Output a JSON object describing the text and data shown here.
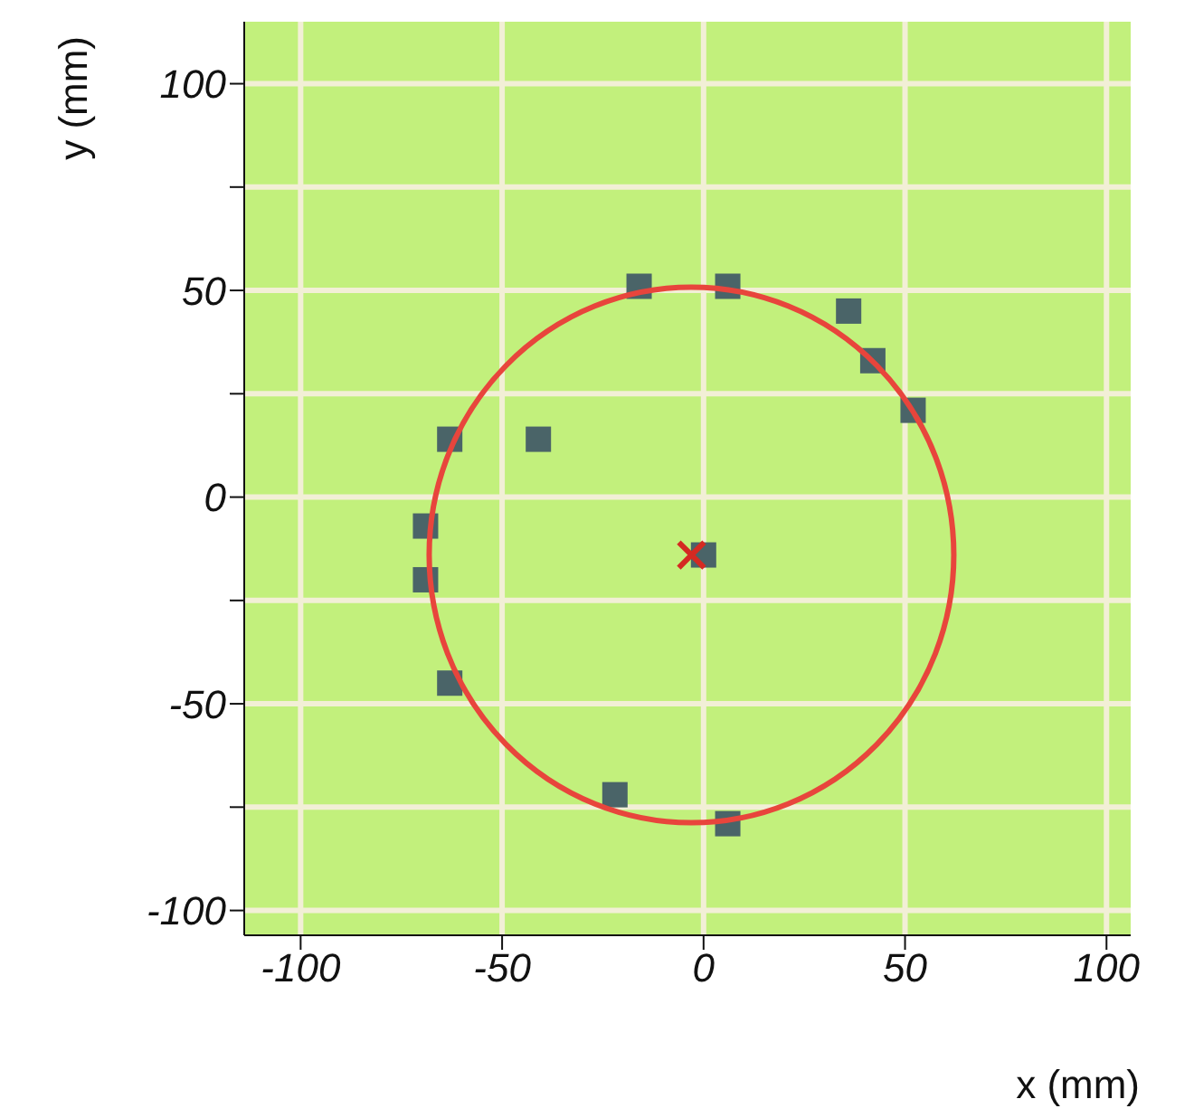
{
  "chart_data": {
    "type": "scatter",
    "xlabel": "x (mm)",
    "ylabel": "y (mm)",
    "xlim": [
      -114,
      106
    ],
    "ylim": [
      -106,
      115
    ],
    "xticks": [
      -100,
      -50,
      0,
      50,
      100
    ],
    "yticks": [
      -100,
      {
        "value": -75,
        "label": null
      },
      -50,
      {
        "value": -25,
        "label": null
      },
      0,
      {
        "value": 25,
        "label": null
      },
      50,
      {
        "value": 75,
        "label": null
      },
      100
    ],
    "grid": true,
    "series": [
      {
        "marker": "square",
        "color": "#4a6468",
        "x": [
          -16,
          6,
          36,
          42,
          52,
          -63,
          -41,
          -69,
          -69,
          -63,
          0,
          -22,
          6
        ],
        "values": [
          51,
          51,
          45,
          33,
          21,
          14,
          14,
          -7,
          -20,
          -45,
          -14,
          -72,
          -79
        ]
      },
      {
        "marker": "cross",
        "color": "#d42a22",
        "x": [
          -3
        ],
        "values": [
          -14
        ]
      }
    ]
  }
}
